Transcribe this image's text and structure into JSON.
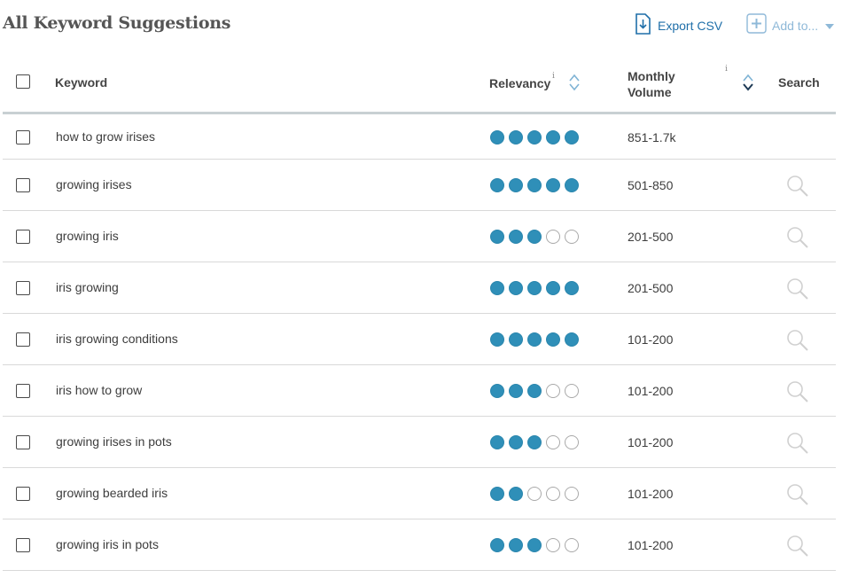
{
  "header": {
    "title": "All Keyword Suggestions",
    "export_label": "Export CSV",
    "add_label": "Add to..."
  },
  "table": {
    "columns": {
      "keyword": "Keyword",
      "relevancy": "Relevancy",
      "volume_line1": "Monthly",
      "volume_line2": "Volume",
      "search": "Search",
      "info": "i"
    },
    "rows": [
      {
        "keyword": "how to grow irises",
        "relevancy": 5,
        "volume": "851-1.7k",
        "has_search": false
      },
      {
        "keyword": "growing irises",
        "relevancy": 5,
        "volume": "501-850",
        "has_search": true
      },
      {
        "keyword": "growing iris",
        "relevancy": 3,
        "volume": "201-500",
        "has_search": true
      },
      {
        "keyword": "iris growing",
        "relevancy": 5,
        "volume": "201-500",
        "has_search": true
      },
      {
        "keyword": "iris growing conditions",
        "relevancy": 5,
        "volume": "101-200",
        "has_search": true
      },
      {
        "keyword": "iris how to grow",
        "relevancy": 3,
        "volume": "101-200",
        "has_search": true
      },
      {
        "keyword": "growing irises in pots",
        "relevancy": 3,
        "volume": "101-200",
        "has_search": true
      },
      {
        "keyword": "growing bearded iris",
        "relevancy": 2,
        "volume": "101-200",
        "has_search": true
      },
      {
        "keyword": "growing iris in pots",
        "relevancy": 3,
        "volume": "101-200",
        "has_search": true
      }
    ]
  },
  "relevancy_max": 5,
  "colors": {
    "accent": "#1f6fa9",
    "dot_on": "#2f8fb8",
    "dot_off_border": "#a9a9a9",
    "muted_icon": "#d0d0d0"
  },
  "icons": {
    "export": "file-download-icon",
    "add": "plus-box-icon",
    "caret": "caret-down-icon",
    "sort": "sort-icon",
    "search": "magnifier-icon"
  }
}
